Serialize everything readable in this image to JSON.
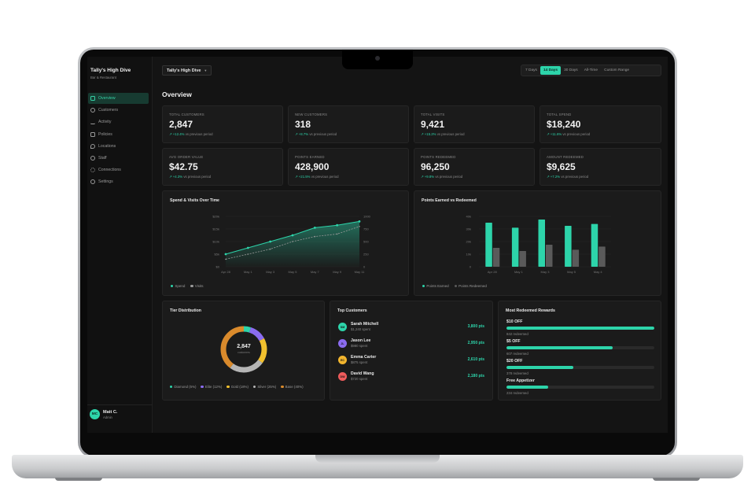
{
  "sidebar": {
    "brand": "Tally's High Dive",
    "subtitle": "Bar & Restaurant",
    "items": [
      {
        "label": "Overview",
        "icon": "grid-icon",
        "active": true
      },
      {
        "label": "Customers",
        "icon": "users-icon"
      },
      {
        "label": "Activity",
        "icon": "activity-icon"
      },
      {
        "label": "Policies",
        "icon": "policy-icon"
      },
      {
        "label": "Locations",
        "icon": "location-icon"
      },
      {
        "label": "Staff",
        "icon": "staff-icon"
      },
      {
        "label": "Connections",
        "icon": "connections-icon"
      },
      {
        "label": "Settings",
        "icon": "gear-icon"
      }
    ],
    "user": {
      "initials": "MC",
      "name": "Matt C.",
      "role": "Admin"
    }
  },
  "header": {
    "venue": "Tally's High Dive",
    "ranges": [
      "7 Days",
      "14 Days",
      "30 Days",
      "All-Time",
      "Custom Range"
    ],
    "active_range": "14 Days",
    "title": "Overview"
  },
  "stats": [
    {
      "label": "TOTAL CUSTOMERS",
      "value": "2,847",
      "delta": "+12.4%",
      "note": "vs previous period"
    },
    {
      "label": "NEW CUSTOMERS",
      "value": "318",
      "delta": "+8.7%",
      "note": "vs previous period"
    },
    {
      "label": "TOTAL VISITS",
      "value": "9,421",
      "delta": "+15.2%",
      "note": "vs previous period"
    },
    {
      "label": "TOTAL SPEND",
      "value": "$18,240",
      "delta": "+11.6%",
      "note": "vs previous period"
    },
    {
      "label": "AVG ORDER VALUE",
      "value": "$42.75",
      "delta": "+4.3%",
      "note": "vs previous period"
    },
    {
      "label": "POINTS EARNED",
      "value": "428,900",
      "delta": "+21.5%",
      "note": "vs previous period"
    },
    {
      "label": "POINTS REDEEMED",
      "value": "96,250",
      "delta": "+9.8%",
      "note": "vs previous period"
    },
    {
      "label": "AMOUNT REDEEMED",
      "value": "$9,625",
      "delta": "+7.2%",
      "note": "vs previous period"
    }
  ],
  "spend_chart_title": "Spend & Visits Over Time",
  "points_chart_title": "Points Earned vs Redeemed",
  "tier_title": "Tier Distribution",
  "tier_center": {
    "value": "2,847",
    "label": "customers"
  },
  "top_customers_title": "Top Customers",
  "top_customers": [
    {
      "initials": "SM",
      "name": "Sarah Mitchell",
      "spent": "$1,240 spent",
      "points": "3,800 pts",
      "color": "#2dd4aa"
    },
    {
      "initials": "JL",
      "name": "Jason Lee",
      "spent": "$980 spent",
      "points": "2,950 pts",
      "color": "#8b6cf0"
    },
    {
      "initials": "EC",
      "name": "Emma Carter",
      "spent": "$875 spent",
      "points": "2,610 pts",
      "color": "#f2b52e"
    },
    {
      "initials": "DW",
      "name": "David Wang",
      "spent": "$720 spent",
      "points": "2,180 pts",
      "color": "#ef5b5b"
    }
  ],
  "rewards_title": "Most Redeemed Rewards",
  "rewards": [
    {
      "name": "$10 OFF",
      "count": "842 redeemed",
      "fraction": 1.0
    },
    {
      "name": "$5 OFF",
      "count": "607 redeemed",
      "fraction": 0.72
    },
    {
      "name": "$20 OFF",
      "count": "378 redeemed",
      "fraction": 0.45
    },
    {
      "name": "Free Appetizer",
      "count": "234 redeemed",
      "fraction": 0.28
    }
  ],
  "chart_data": [
    {
      "type": "line",
      "title": "Spend & Visits Over Time",
      "x": [
        "Apr 28",
        "May 1",
        "May 3",
        "May 5",
        "May 7",
        "May 9",
        "May 11"
      ],
      "y_left_ticks": [
        "$0",
        "$5k",
        "$10k",
        "$15k",
        "$20k"
      ],
      "y_right_ticks": [
        "0",
        "250",
        "500",
        "750",
        "1000"
      ],
      "ylim": [
        0,
        20000
      ],
      "y2lim": [
        0,
        1000
      ],
      "series": [
        {
          "name": "Spend",
          "axis": "left",
          "color": "#2dd4aa",
          "values": [
            5000,
            7500,
            10000,
            12500,
            15500,
            16500,
            18000
          ]
        },
        {
          "name": "Visits",
          "axis": "right",
          "color": "#9a9a9a",
          "values": [
            150,
            250,
            350,
            500,
            600,
            650,
            800
          ]
        }
      ],
      "legend": "bottom-left"
    },
    {
      "type": "bar",
      "title": "Points Earned vs Redeemed",
      "categories": [
        "Apr 28",
        "May 1",
        "May 3",
        "May 5",
        "May 4"
      ],
      "y_ticks": [
        "0",
        "10k",
        "20k",
        "30k",
        "40k"
      ],
      "ylim": [
        0,
        40000
      ],
      "series": [
        {
          "name": "Points Earned",
          "color": "#2dd4aa",
          "values": [
            35000,
            31000,
            37500,
            32500,
            34000
          ]
        },
        {
          "name": "Points Redeemed",
          "color": "#5a5a5a",
          "values": [
            15000,
            12500,
            17500,
            13500,
            16000
          ]
        }
      ],
      "legend": "bottom-left"
    },
    {
      "type": "pie",
      "title": "Tier Distribution",
      "labels": [
        "Diamond (5%)",
        "Elite (12%)",
        "Gold (18%)",
        "Silver (25%)",
        "Base (40%)"
      ],
      "values": [
        5,
        12,
        18,
        25,
        40
      ],
      "colors": [
        "#2dd4aa",
        "#8b6cf0",
        "#f2c12e",
        "#b5b5b5",
        "#d98a2c"
      ],
      "donut": true,
      "legend": "bottom"
    }
  ]
}
